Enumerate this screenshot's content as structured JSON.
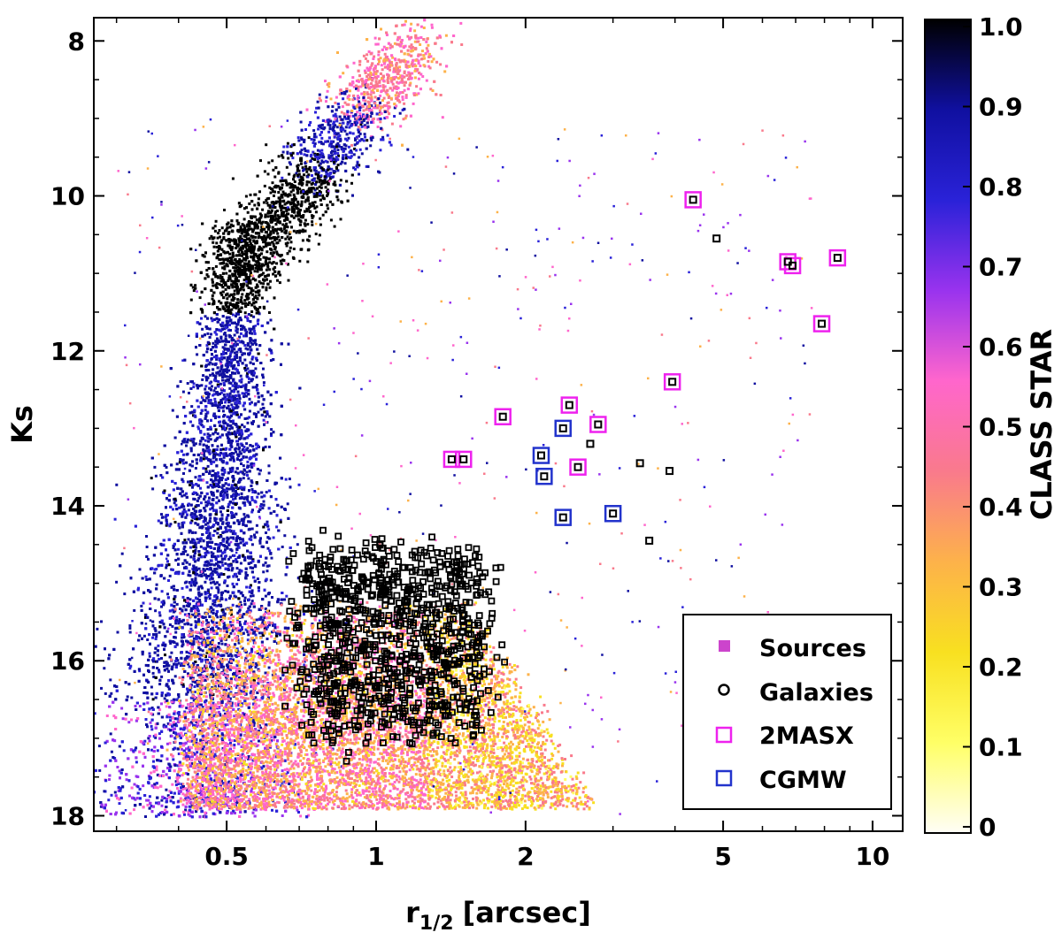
{
  "chart_data": {
    "type": "scatter",
    "xlabel_main": "r",
    "xlabel_sub": "1/2",
    "xlabel_unit": "[arcsec]",
    "ylabel": "Ks",
    "xscale": "log",
    "xlim": [
      0.27,
      11.5
    ],
    "ylim": [
      18.2,
      7.7
    ],
    "x_ticks": [
      0.5,
      1,
      2,
      5,
      10
    ],
    "x_tick_labels": [
      "0.5",
      "1",
      "2",
      "5",
      "10"
    ],
    "y_ticks": [
      8,
      10,
      12,
      14,
      16,
      18
    ],
    "y_tick_labels": [
      "8",
      "10",
      "12",
      "14",
      "16",
      "18"
    ],
    "colorbar": {
      "label": "CLASS STAR",
      "ticks": [
        0,
        0.1,
        0.2,
        0.3,
        0.4,
        0.5,
        0.6,
        0.7,
        0.8,
        0.9,
        1.0
      ],
      "tick_labels": [
        "0",
        "0.1",
        "0.2",
        "0.3",
        "0.4",
        "0.5",
        "0.6",
        "0.7",
        "0.8",
        "0.9",
        "1.0"
      ],
      "colors": [
        "#fffef6",
        "#ffff66",
        "#f8e020",
        "#fdb24a",
        "#f97a8c",
        "#ff66cc",
        "#9933ee",
        "#2a22d8",
        "#1010a0",
        "#000000"
      ]
    },
    "legend": {
      "placement": "bottom-right",
      "entries": [
        {
          "label": "Sources",
          "marker": "filled-square",
          "color": "#cc44cc"
        },
        {
          "label": "Galaxies",
          "marker": "open-circle",
          "color": "#000000"
        },
        {
          "label": "2MASX",
          "marker": "open-square",
          "color": "#ee22ee"
        },
        {
          "label": "CGMW",
          "marker": "open-square",
          "color": "#2233cc"
        }
      ]
    },
    "series": [
      {
        "name": "2MASX",
        "color": "#ee22ee",
        "points": [
          [
            4.35,
            10.05
          ],
          [
            6.75,
            10.85
          ],
          [
            6.9,
            10.9
          ],
          [
            8.5,
            10.8
          ],
          [
            7.9,
            11.65
          ],
          [
            3.95,
            12.4
          ],
          [
            2.45,
            12.7
          ],
          [
            1.8,
            12.85
          ],
          [
            2.8,
            12.95
          ],
          [
            1.42,
            13.4
          ],
          [
            1.5,
            13.4
          ],
          [
            2.55,
            13.5
          ]
        ]
      },
      {
        "name": "CGMW",
        "color": "#2233cc",
        "points": [
          [
            2.38,
            13.0
          ],
          [
            2.15,
            13.35
          ],
          [
            2.18,
            13.62
          ],
          [
            2.38,
            14.15
          ],
          [
            3.0,
            14.1
          ]
        ]
      },
      {
        "name": "Galaxies",
        "color": "#000000",
        "points": [
          [
            4.35,
            10.05
          ],
          [
            4.85,
            10.55
          ],
          [
            6.75,
            10.85
          ],
          [
            6.9,
            10.9
          ],
          [
            8.5,
            10.8
          ],
          [
            7.9,
            11.65
          ],
          [
            3.95,
            12.4
          ],
          [
            2.45,
            12.7
          ],
          [
            1.8,
            12.85
          ],
          [
            2.8,
            12.95
          ],
          [
            2.38,
            13.0
          ],
          [
            1.42,
            13.4
          ],
          [
            1.5,
            13.4
          ],
          [
            2.55,
            13.5
          ],
          [
            2.15,
            13.35
          ],
          [
            2.18,
            13.62
          ],
          [
            2.38,
            14.15
          ],
          [
            3.0,
            14.1
          ],
          [
            3.4,
            13.45
          ],
          [
            3.9,
            13.55
          ],
          [
            3.55,
            14.45
          ],
          [
            2.7,
            13.2
          ]
        ]
      }
    ]
  }
}
